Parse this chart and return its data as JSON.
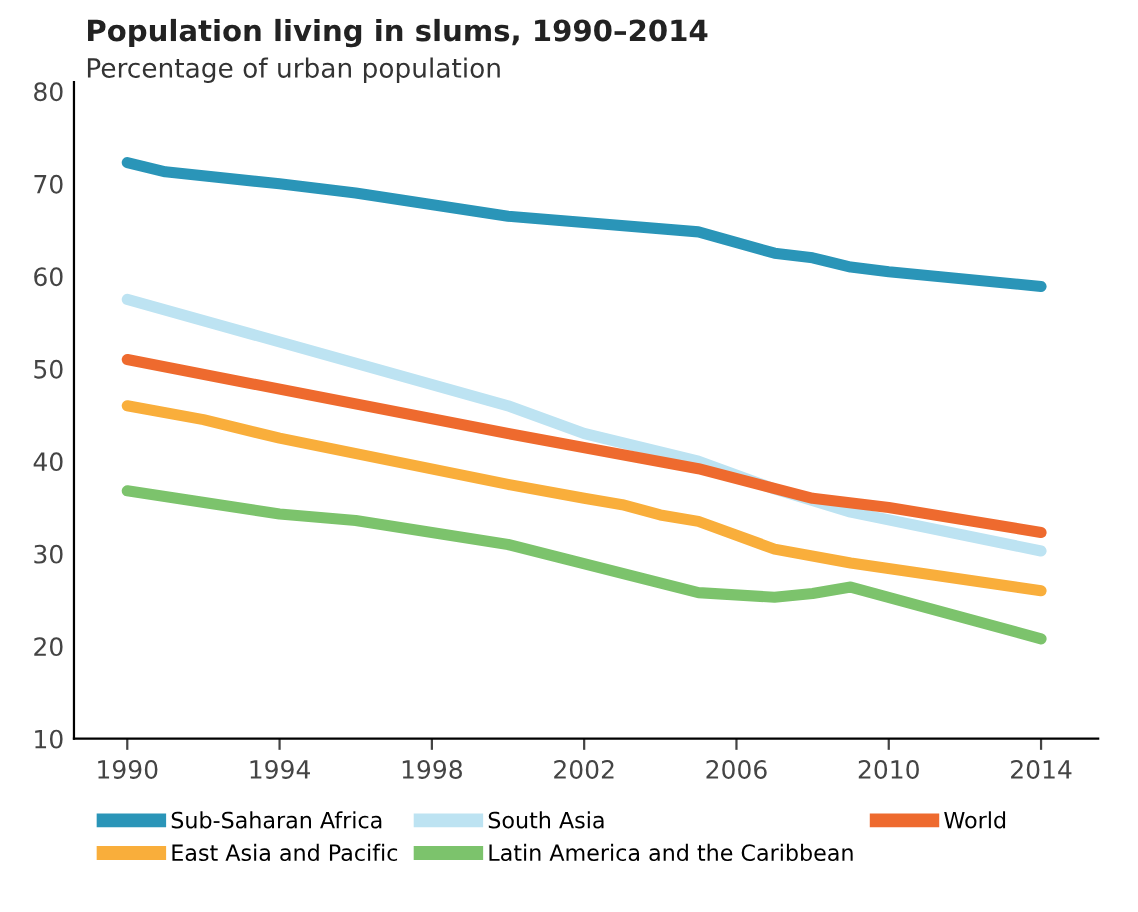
{
  "chart_data": {
    "type": "line",
    "title": "Population living in slums, 1990–2014",
    "subtitle": "Percentage of urban population",
    "xlim": [
      1988.6,
      2015.5
    ],
    "xticks": [
      1990,
      1994,
      1998,
      2002,
      2006,
      2010,
      2014
    ],
    "ylim": [
      10,
      81
    ],
    "yticks": [
      10,
      20,
      30,
      40,
      50,
      60,
      70,
      80
    ],
    "grid": false,
    "legend": "bottom",
    "marker": "none",
    "line_style": "solid",
    "series": [
      {
        "name": "Sub-Saharan Africa",
        "color": "#2a95b8",
        "x": [
          1990,
          1991,
          1994,
          1996,
          2000,
          2005,
          2007,
          2008,
          2009,
          2010,
          2014
        ],
        "values": [
          72.3,
          71.3,
          70,
          69,
          66.5,
          64.8,
          62.5,
          62,
          61,
          60.5,
          58.9
        ]
      },
      {
        "name": "South Asia",
        "color": "#bde3f2",
        "x": [
          1990,
          2000,
          2002,
          2005,
          2007,
          2009,
          2014
        ],
        "values": [
          57.5,
          46,
          43,
          40,
          37,
          34.5,
          30.3
        ]
      },
      {
        "name": "World",
        "color": "#ee6a2e",
        "x": [
          1990,
          2000,
          2005,
          2008,
          2010,
          2014
        ],
        "values": [
          51,
          43,
          39.2,
          36,
          35,
          32.3
        ]
      },
      {
        "name": "East Asia and Pacific",
        "color": "#f9ae3b",
        "x": [
          1990,
          1992,
          1994,
          2000,
          2002,
          2003,
          2004,
          2005,
          2007,
          2009,
          2014
        ],
        "values": [
          46,
          44.5,
          42.5,
          37.5,
          36,
          35.3,
          34.2,
          33.5,
          30.5,
          29,
          26
        ]
      },
      {
        "name": "Latin America and the Caribbean",
        "color": "#7cc36c",
        "x": [
          1990,
          1994,
          1996,
          2000,
          2005,
          2007,
          2008,
          2009,
          2014
        ],
        "values": [
          36.8,
          34.3,
          33.6,
          31,
          25.8,
          25.3,
          25.7,
          26.4,
          20.8
        ]
      }
    ]
  }
}
